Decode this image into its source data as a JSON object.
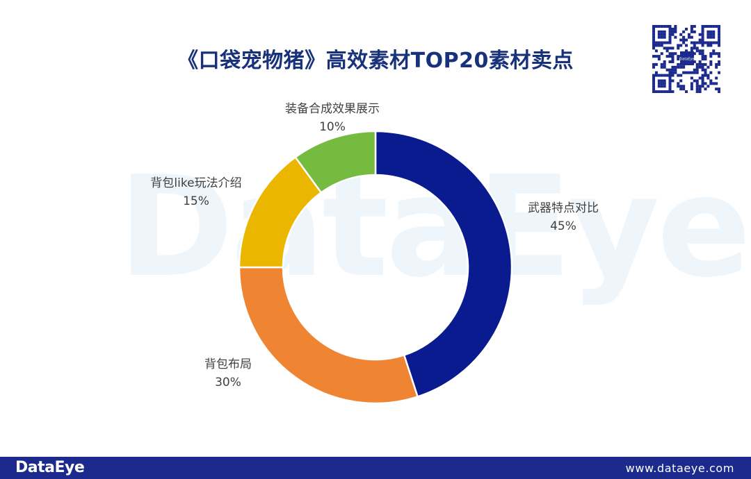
{
  "title": "《口袋宠物猪》高效素材TOP20素材卖点",
  "watermark": "DataEye",
  "footer": {
    "logo": "DataEye",
    "url": "www.dataeye.com"
  },
  "qr_logo": "DataEye",
  "chart_data": {
    "type": "pie",
    "title": "《口袋宠物猪》高效素材TOP20素材卖点",
    "donut": true,
    "categories": [
      "武器特点对比",
      "背包布局",
      "背包like玩法介绍",
      "装备合成效果展示"
    ],
    "values": [
      45,
      30,
      15,
      10
    ],
    "labels": [
      "45%",
      "30%",
      "15%",
      "10%"
    ],
    "colors": [
      "#0a1a8f",
      "#ef8533",
      "#eab600",
      "#74bb3f"
    ]
  }
}
